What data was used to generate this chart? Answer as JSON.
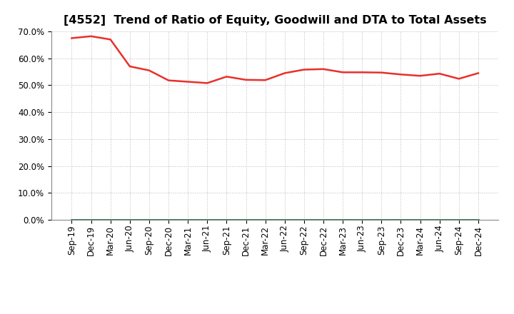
{
  "title": "[4552]  Trend of Ratio of Equity, Goodwill and DTA to Total Assets",
  "x_labels": [
    "Sep-19",
    "Dec-19",
    "Mar-20",
    "Jun-20",
    "Sep-20",
    "Dec-20",
    "Mar-21",
    "Jun-21",
    "Sep-21",
    "Dec-21",
    "Mar-22",
    "Jun-22",
    "Sep-22",
    "Dec-22",
    "Mar-23",
    "Jun-23",
    "Sep-23",
    "Dec-23",
    "Mar-24",
    "Jun-24",
    "Sep-24",
    "Dec-24"
  ],
  "equity": [
    0.675,
    0.682,
    0.67,
    0.57,
    0.555,
    0.518,
    0.513,
    0.508,
    0.532,
    0.52,
    0.519,
    0.545,
    0.558,
    0.56,
    0.548,
    0.548,
    0.547,
    0.54,
    0.535,
    0.543,
    0.524,
    0.545
  ],
  "goodwill": [
    0.0,
    0.0,
    0.0,
    0.0,
    0.0,
    0.0,
    0.0,
    0.0,
    0.0,
    0.0,
    0.0,
    0.0,
    0.0,
    0.0,
    0.0,
    0.0,
    0.0,
    0.0,
    0.0,
    0.0,
    0.0,
    0.0
  ],
  "dta": [
    0.0,
    0.0,
    0.0,
    0.0,
    0.0,
    0.0,
    0.0,
    0.0,
    0.0,
    0.0,
    0.0,
    0.0,
    0.0,
    0.0,
    0.0,
    0.0,
    0.0,
    0.0,
    0.0,
    0.0,
    0.0,
    0.0
  ],
  "equity_color": "#e8302a",
  "goodwill_color": "#2222cc",
  "dta_color": "#228822",
  "background_color": "#ffffff",
  "plot_bg_color": "#ffffff",
  "grid_color": "#bbbbbb",
  "ylim": [
    0.0,
    0.7
  ],
  "yticks": [
    0.0,
    0.1,
    0.2,
    0.3,
    0.4,
    0.5,
    0.6,
    0.7
  ],
  "title_fontsize": 11.5,
  "tick_fontsize": 8.5,
  "legend_fontsize": 9.5,
  "line_width": 1.8
}
